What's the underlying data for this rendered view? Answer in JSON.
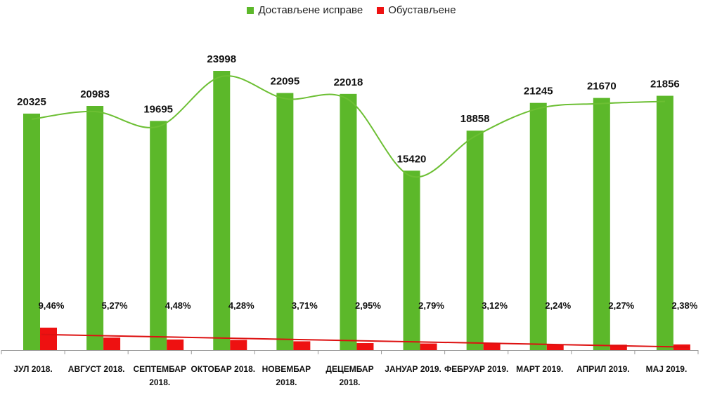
{
  "chart_data": {
    "type": "bar",
    "categories": [
      "ЈУЛ 2018.",
      "АВГУСТ 2018.",
      "СЕПТЕМБАР 2018.",
      "ОКТОБАР 2018.",
      "НОВЕМБАР 2018.",
      "ДЕЦЕМБАР 2018.",
      "ЈАНУАР 2019.",
      "ФЕБРУАР 2019.",
      "МАРТ 2019.",
      "АПРИЛ 2019.",
      "МАЈ 2019."
    ],
    "series": [
      {
        "name": "Достављене исправе",
        "color": "#5cb82a",
        "values": [
          20325,
          20983,
          19695,
          23998,
          22095,
          22018,
          15420,
          18858,
          21245,
          21670,
          21856
        ],
        "labels": [
          "20325",
          "20983",
          "19695",
          "23998",
          "22095",
          "22018",
          "15420",
          "18858",
          "21245",
          "21670",
          "21856"
        ]
      },
      {
        "name": "Обустављене",
        "color": "#ee1111",
        "values": [
          9.46,
          5.27,
          4.48,
          4.28,
          3.71,
          2.95,
          2.79,
          3.12,
          2.24,
          2.27,
          2.38
        ],
        "labels": [
          "9,46%",
          "5,27%",
          "4,48%",
          "4,28%",
          "3,71%",
          "2,95%",
          "2,79%",
          "3,12%",
          "2,24%",
          "2,27%",
          "2,38%"
        ]
      }
    ],
    "trendlines": [
      "smooth-curve-over-green",
      "linear-over-red"
    ],
    "legend": "top-center",
    "grid": false,
    "xlabel": "",
    "ylabel": ""
  }
}
